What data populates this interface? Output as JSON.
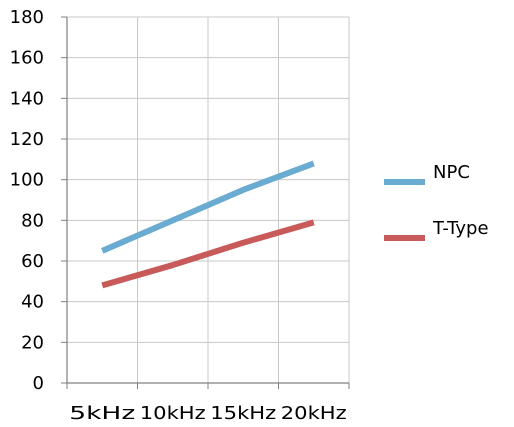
{
  "chart_data": {
    "type": "line",
    "title": "",
    "xlabel": "",
    "ylabel": "",
    "categories": [
      "5kHz",
      "10kHz",
      "15kHz",
      "20kHz"
    ],
    "ylim": [
      0,
      180
    ],
    "yticks": [
      0,
      20,
      40,
      60,
      80,
      100,
      120,
      140,
      160,
      180
    ],
    "grid": true,
    "legend": "right",
    "series": [
      {
        "name": "NPC",
        "color": "#6aabd2",
        "values": [
          65,
          80,
          95,
          108
        ]
      },
      {
        "name": "T-Type",
        "color": "#c85a5a",
        "values": [
          48,
          58,
          69,
          79
        ]
      }
    ]
  }
}
